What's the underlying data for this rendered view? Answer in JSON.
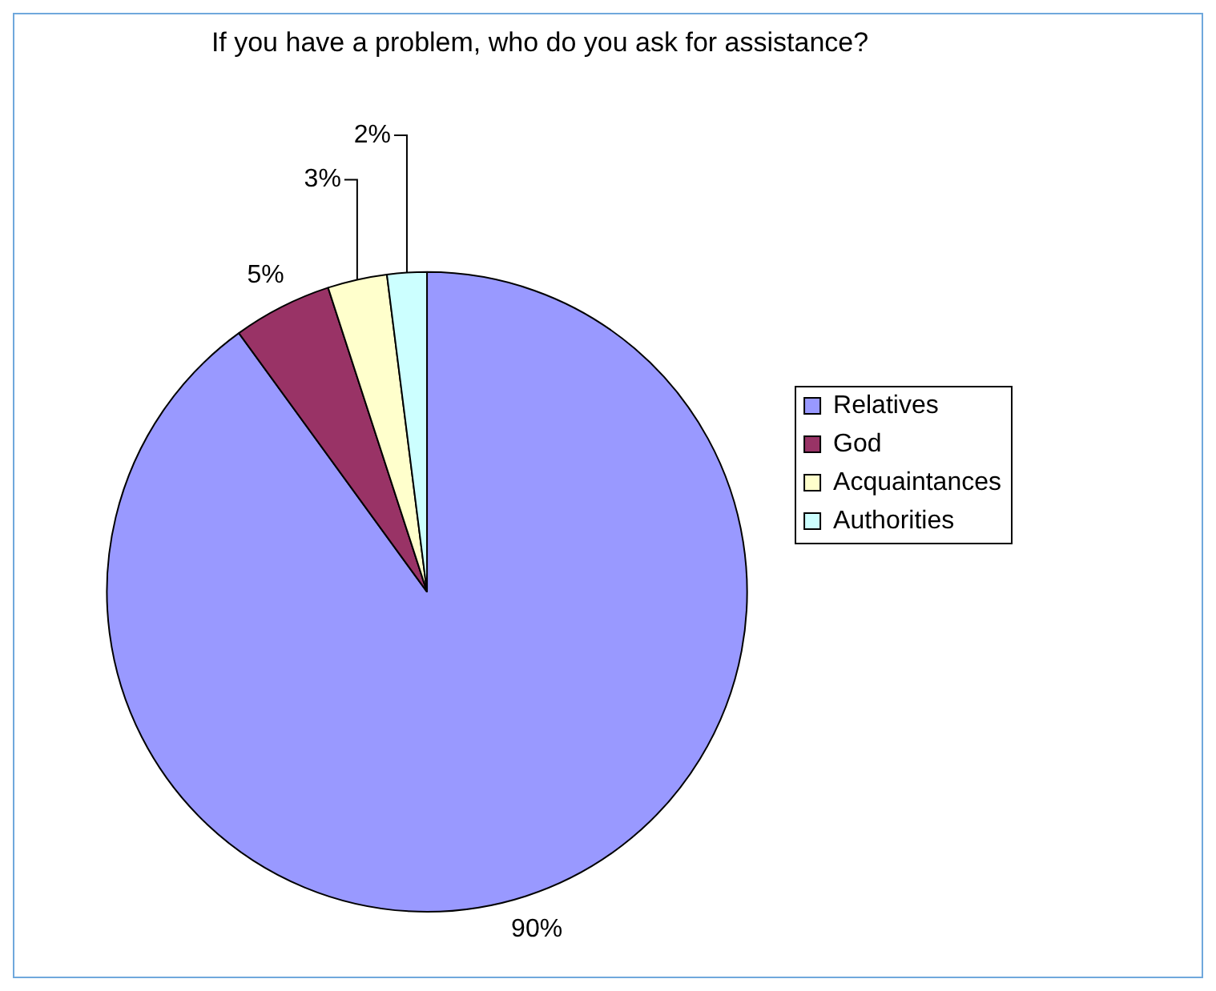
{
  "chart_data": {
    "type": "pie",
    "title": "If you have a problem, who do you ask for assistance?",
    "categories": [
      "Relatives",
      "God",
      "Acquaintances",
      "Authorities"
    ],
    "values": [
      90,
      5,
      3,
      2
    ],
    "colors": [
      "#9999ff",
      "#993366",
      "#ffffcc",
      "#ccffff"
    ],
    "value_labels": [
      "90%",
      "5%",
      "3%",
      "2%"
    ],
    "legend": "right"
  }
}
